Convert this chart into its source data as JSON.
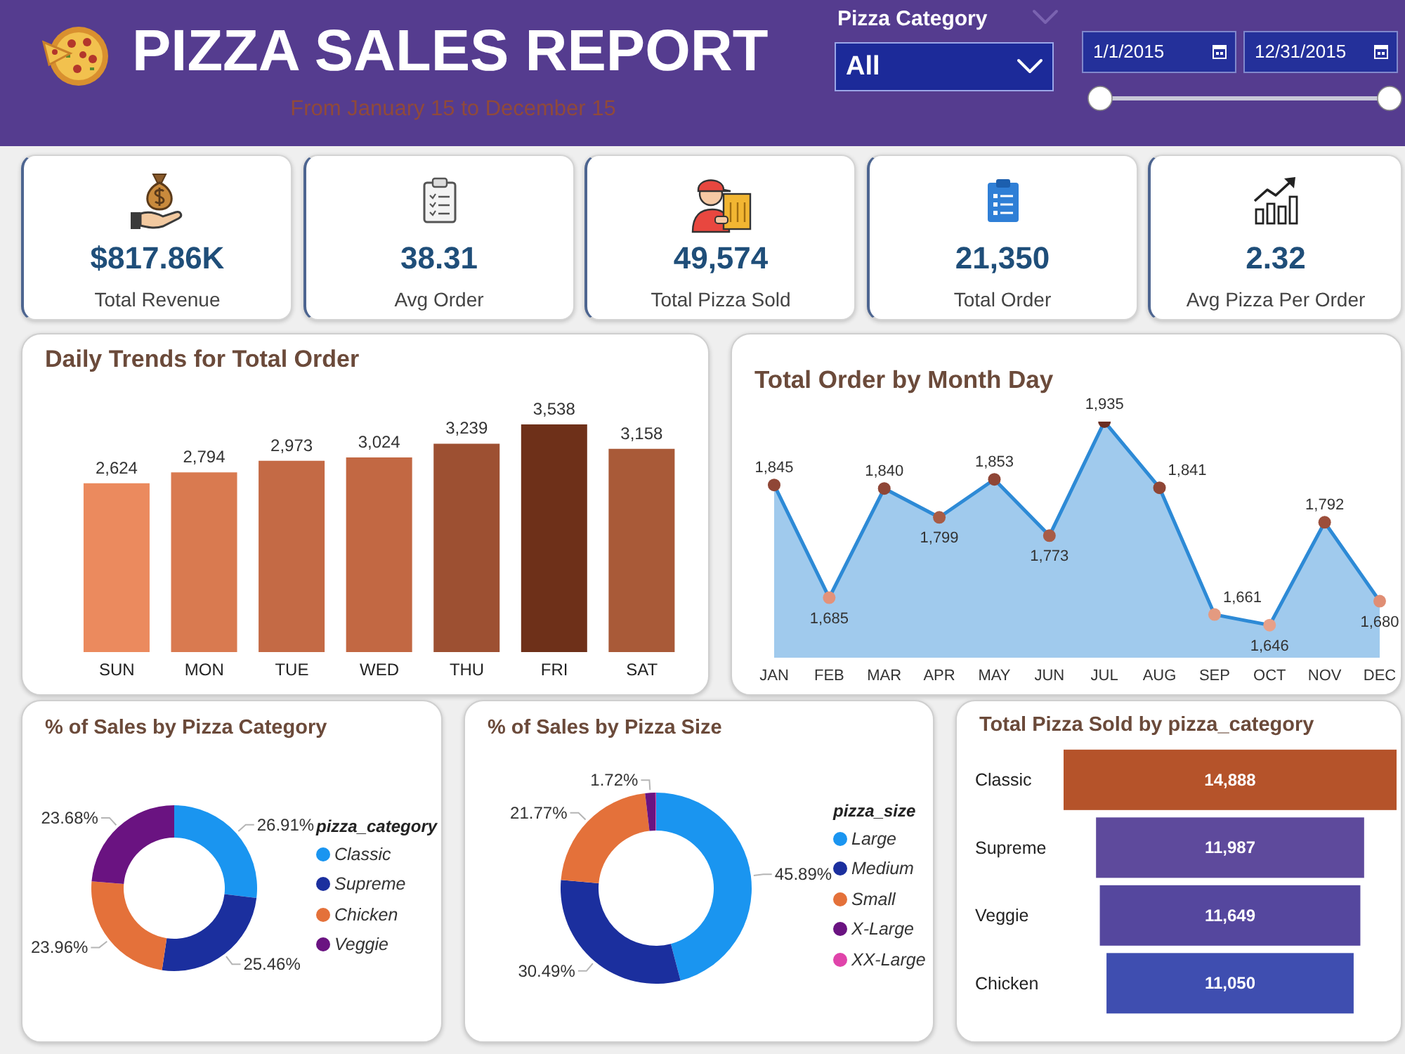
{
  "chart_data": [
    {
      "type": "other",
      "title": "PIZZA SALES REPORT",
      "subtitle": "From January 15 to December 15",
      "annotations": [
        "Pizza Category",
        "All",
        "1/1/2015",
        "12/31/2015"
      ]
    },
    {
      "type": "other",
      "annotations": [
        "$817.86K",
        "Total Revenue",
        "38.31",
        "Avg Order",
        "49,574",
        "Total Pizza Sold",
        "21,350",
        "Total Order",
        "2.32",
        "Avg Pizza Per Order"
      ]
    },
    {
      "type": "bar",
      "title": "Daily Trends for Total Order",
      "categories": [
        "SUN",
        "MON",
        "TUE",
        "WED",
        "THU",
        "FRI",
        "SAT"
      ],
      "values": [
        2624,
        2794,
        2973,
        3024,
        3239,
        3538,
        3158
      ],
      "colors": [
        "#eb8a5e",
        "#d97a50",
        "#c46a45",
        "#c26843",
        "#9d5032",
        "#6e3019",
        "#a95a38"
      ],
      "value_labels": [
        "2,624",
        "2,794",
        "2,973",
        "3,024",
        "3,239",
        "3,538",
        "3,158"
      ],
      "tick_labels": "x"
    },
    {
      "type": "area",
      "title": "Total Order by Month Day",
      "categories": [
        "JAN",
        "FEB",
        "MAR",
        "APR",
        "MAY",
        "JUN",
        "JUL",
        "AUG",
        "SEP",
        "OCT",
        "NOV",
        "DEC"
      ],
      "values": [
        1845,
        1685,
        1840,
        1799,
        1853,
        1773,
        1935,
        1841,
        1661,
        1646,
        1792,
        1680
      ],
      "color": "#2d8ad6",
      "colors": [
        "#8f4636",
        "#e3927a",
        "#8f4636",
        "#a85c46",
        "#8f4636",
        "#a85c46",
        "#6b2e22",
        "#8f4636",
        "#e49a80",
        "#e8a088",
        "#9c4e3b",
        "#e08e74"
      ],
      "marker": "circle",
      "value_labels": [
        "1,845",
        "1,685",
        "1,840",
        "1,799",
        "1,853",
        "1,773",
        "1,935",
        "1,841",
        "1,661",
        "1,646",
        "1,792",
        "1,680"
      ],
      "tick_labels": "x"
    },
    {
      "type": "donut",
      "title": "% of Sales by Pizza Category",
      "categories": [
        "Classic",
        "Supreme",
        "Chicken",
        "Veggie"
      ],
      "values": [
        26.91,
        25.46,
        23.96,
        23.68
      ],
      "colors": [
        "#1a95f0",
        "#1b2f9e",
        "#e4713a",
        "#6a1381"
      ],
      "value_labels": [
        "26.91%",
        "25.46%",
        "23.96%",
        "23.68%"
      ],
      "legend": "right",
      "legend_title": "pizza_category"
    },
    {
      "type": "donut",
      "title": "% of Sales by Pizza Size",
      "categories": [
        "Large",
        "Medium",
        "Small",
        "X-Large",
        "XX-Large"
      ],
      "values": [
        45.89,
        30.49,
        21.77,
        1.72,
        0.13
      ],
      "colors": [
        "#1a95f0",
        "#1b2f9e",
        "#e4713a",
        "#6a1381",
        "#e044aa"
      ],
      "value_labels": [
        "45.89%",
        "30.49%",
        "21.77%",
        "1.72%",
        null
      ],
      "legend": "right",
      "legend_title": "pizza_size"
    },
    {
      "type": "other",
      "title": "Total Pizza Sold by pizza_category",
      "categories": [
        "Classic",
        "Supreme",
        "Veggie",
        "Chicken"
      ],
      "values": [
        14888,
        11987,
        11649,
        11050
      ],
      "colors": [
        "#b5532a",
        "#5e4a9c",
        "#55479e",
        "#3f4eb0"
      ],
      "value_labels": [
        "14,888",
        "11,987",
        "11,649",
        "11,050"
      ]
    }
  ]
}
